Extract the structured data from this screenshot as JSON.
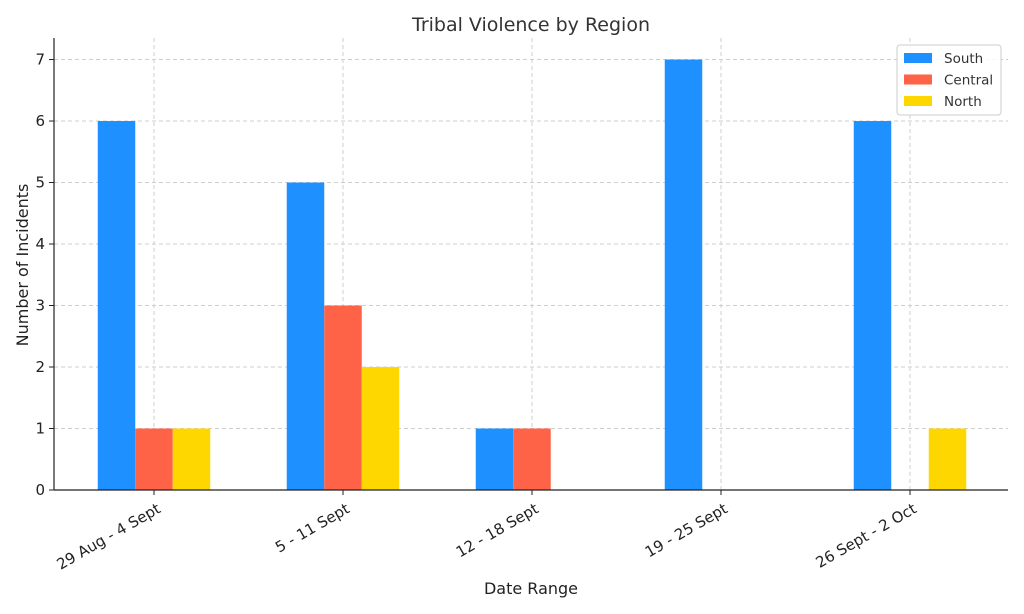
{
  "chart_data": {
    "type": "bar",
    "title": "Tribal Violence by Region",
    "xlabel": "Date Range",
    "ylabel": "Number of Incidents",
    "categories": [
      "29 Aug - 4 Sept",
      "5 - 11 Sept",
      "12 - 18 Sept",
      "19 - 25 Sept",
      "26 Sept - 2 Oct"
    ],
    "series": [
      {
        "name": "South",
        "color": "#1E90FF",
        "values": [
          6,
          5,
          1,
          7,
          6
        ]
      },
      {
        "name": "Central",
        "color": "#FF6347",
        "values": [
          1,
          3,
          1,
          0,
          0
        ]
      },
      {
        "name": "North",
        "color": "#FFD700",
        "values": [
          1,
          2,
          0,
          0,
          1
        ]
      }
    ],
    "ylim": [
      0,
      7.35
    ],
    "yticks": [
      0,
      1,
      2,
      3,
      4,
      5,
      6,
      7
    ],
    "grid": true,
    "legend_position": "top-right"
  }
}
